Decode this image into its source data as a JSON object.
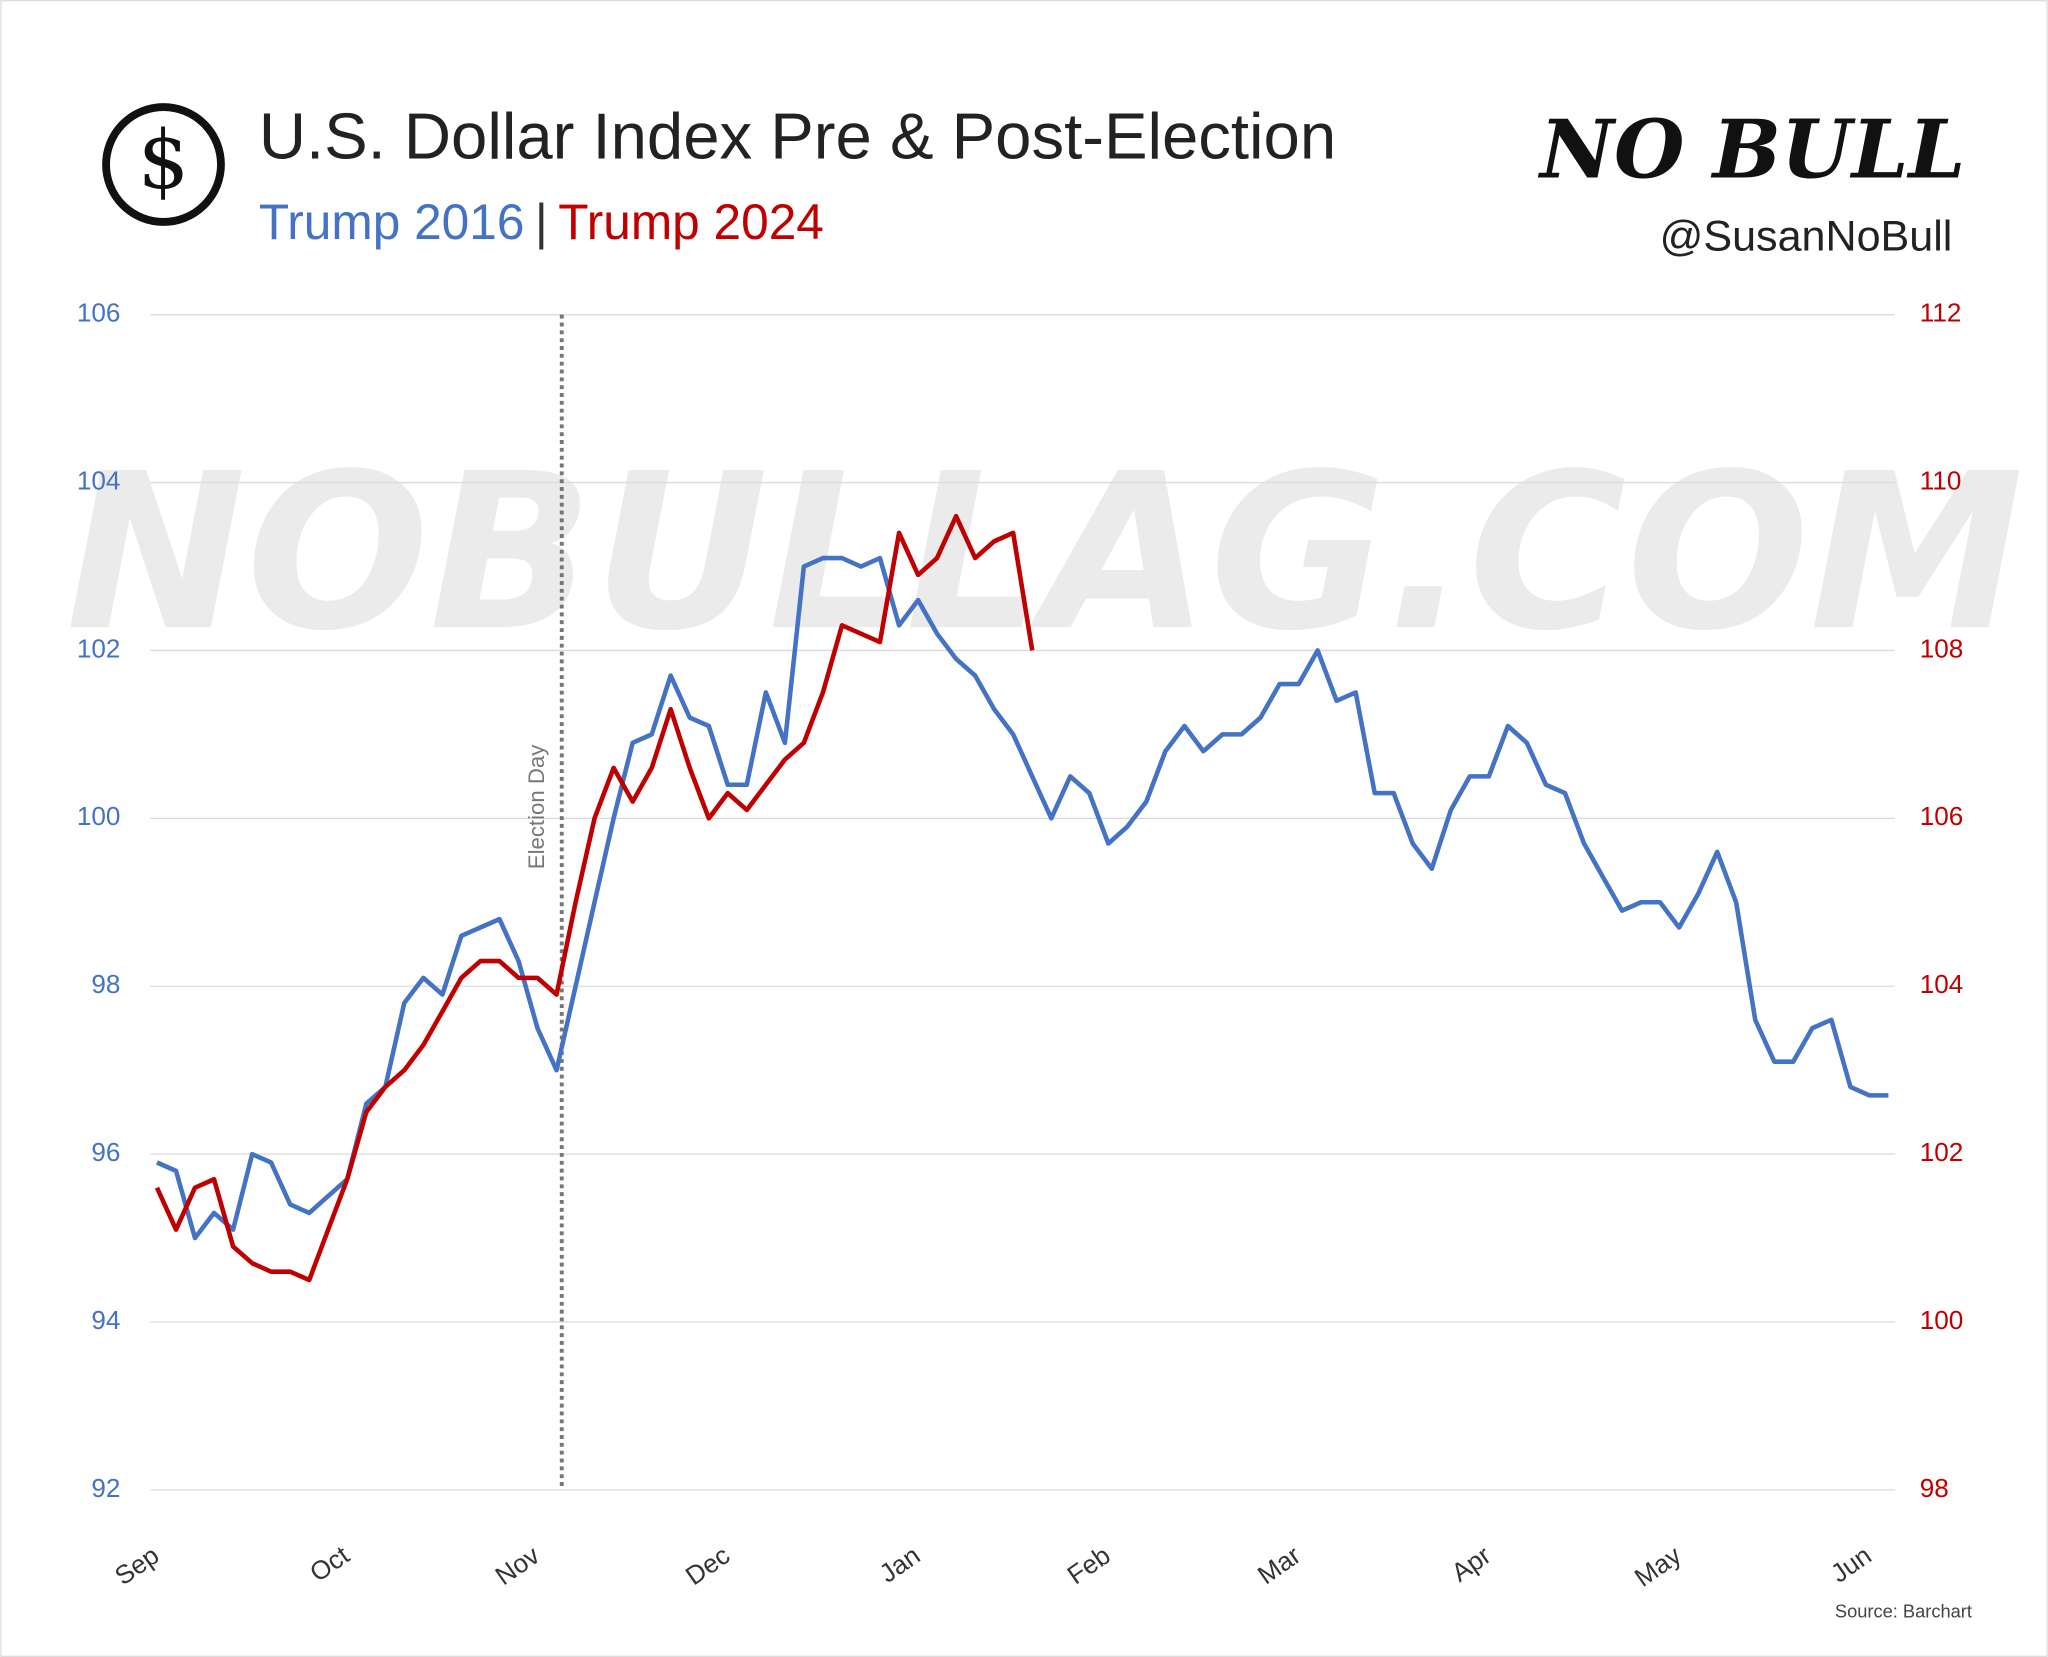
{
  "icon": "$",
  "logo": "NO BULL",
  "handle": "@SusanNoBull",
  "watermark": "NOBULLAG.COM",
  "source": "Source: Barchart",
  "chart_data": {
    "type": "line",
    "title": "U.S. Dollar Index Pre & Post-Election",
    "legend_separator": "|",
    "annotation": "Election Day",
    "categories": [
      "Sep",
      null,
      null,
      null,
      null,
      null,
      null,
      null,
      null,
      null,
      "Oct",
      null,
      null,
      null,
      null,
      null,
      null,
      null,
      null,
      null,
      "Nov",
      null,
      null,
      null,
      null,
      null,
      null,
      null,
      null,
      null,
      "Dec",
      null,
      null,
      null,
      null,
      null,
      null,
      null,
      null,
      null,
      "Jan",
      null,
      null,
      null,
      null,
      null,
      null,
      null,
      null,
      null,
      "Feb",
      null,
      null,
      null,
      null,
      null,
      null,
      null,
      null,
      null,
      "Mar",
      null,
      null,
      null,
      null,
      null,
      null,
      null,
      null,
      null,
      "Apr",
      null,
      null,
      null,
      null,
      null,
      null,
      null,
      null,
      null,
      "May",
      null,
      null,
      null,
      null,
      null,
      null,
      null,
      null,
      null,
      "Jun",
      null
    ],
    "series": [
      {
        "name": "Trump 2016",
        "color": "#4472c4",
        "axis": "y",
        "values": [
          95.9,
          95.8,
          95.0,
          95.3,
          95.1,
          96.0,
          95.9,
          95.4,
          95.3,
          95.5,
          95.7,
          96.6,
          96.8,
          97.8,
          98.1,
          97.9,
          98.6,
          98.7,
          98.8,
          98.3,
          97.5,
          97.0,
          98.0,
          99.0,
          100.0,
          100.9,
          101.0,
          101.7,
          101.2,
          101.1,
          100.4,
          100.4,
          101.5,
          100.9,
          103.0,
          103.1,
          103.1,
          103.0,
          103.1,
          102.3,
          102.6,
          102.2,
          101.9,
          101.7,
          101.3,
          101.0,
          100.5,
          100.0,
          100.5,
          100.3,
          99.7,
          99.9,
          100.2,
          100.8,
          101.1,
          100.8,
          101.0,
          101.0,
          101.2,
          101.6,
          101.6,
          102.0,
          101.4,
          101.5,
          100.3,
          100.3,
          99.7,
          99.4,
          100.1,
          100.5,
          100.5,
          101.1,
          100.9,
          100.4,
          100.3,
          99.7,
          99.3,
          98.9,
          99.0,
          99.0,
          98.7,
          99.1,
          99.6,
          99.0,
          97.6,
          97.1,
          97.1,
          97.5,
          97.6,
          96.8,
          96.7,
          96.7
        ]
      },
      {
        "name": "Trump 2024",
        "color": "#c00000",
        "axis": "y2",
        "values": [
          101.6,
          101.1,
          101.6,
          101.7,
          100.9,
          100.7,
          100.6,
          100.6,
          100.5,
          101.1,
          101.7,
          102.5,
          102.8,
          103.0,
          103.3,
          103.7,
          104.1,
          104.3,
          104.3,
          104.1,
          104.1,
          103.9,
          105.0,
          106.0,
          106.6,
          106.2,
          106.6,
          107.3,
          106.6,
          106.0,
          106.3,
          106.1,
          106.4,
          106.7,
          106.9,
          107.5,
          108.3,
          108.2,
          108.1,
          109.4,
          108.9,
          109.1,
          109.6,
          109.1,
          109.3,
          109.4,
          108.0,
          null,
          null,
          null,
          null,
          null,
          null,
          null,
          null,
          null,
          null,
          null,
          null,
          null,
          null,
          null,
          null,
          null,
          null,
          null,
          null,
          null,
          null,
          null,
          null,
          null,
          null,
          null,
          null,
          null,
          null,
          null,
          null,
          null,
          null,
          null,
          null,
          null,
          null,
          null,
          null,
          null,
          null,
          null,
          null,
          null
        ]
      }
    ],
    "ylim": [
      92,
      106
    ],
    "yticks": [
      92,
      94,
      96,
      98,
      100,
      102,
      104,
      106
    ],
    "y2lim": [
      98,
      112
    ],
    "y2ticks": [
      98,
      100,
      102,
      104,
      106,
      108,
      110,
      112
    ],
    "grid": true
  }
}
